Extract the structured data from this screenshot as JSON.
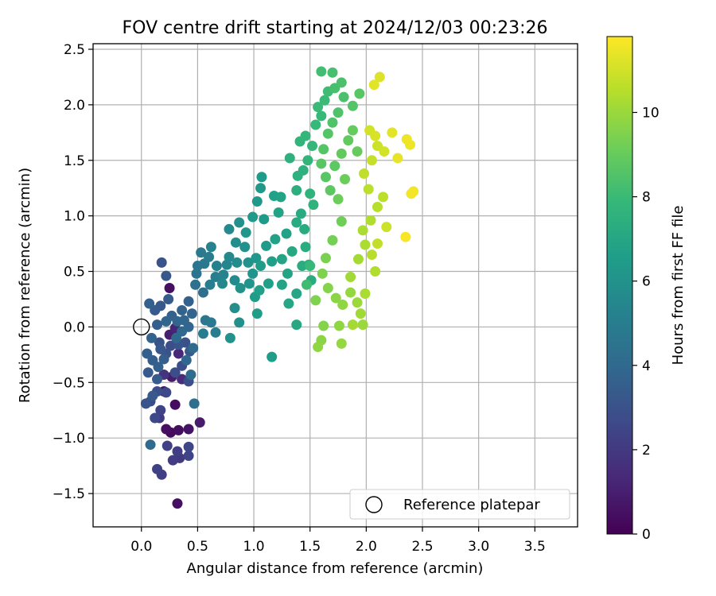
{
  "chart_data": {
    "type": "scatter",
    "title": "FOV centre drift starting at 2024/12/03 00:23:26",
    "xlabel": "Angular distance from reference (arcmin)",
    "ylabel": "Rotation from reference (arcmin)",
    "xlim": [
      -0.43,
      3.88
    ],
    "ylim": [
      -1.8,
      2.55
    ],
    "xticks": [
      0.0,
      0.5,
      1.0,
      1.5,
      2.0,
      2.5,
      3.0,
      3.5
    ],
    "xtick_labels": [
      "0.0",
      "0.5",
      "1.0",
      "1.5",
      "2.0",
      "2.5",
      "3.0",
      "3.5"
    ],
    "yticks": [
      -1.5,
      -1.0,
      -0.5,
      0.0,
      0.5,
      1.0,
      1.5,
      2.0,
      2.5
    ],
    "ytick_labels": [
      "−1.5",
      "−1.0",
      "−0.5",
      "0.0",
      "0.5",
      "1.0",
      "1.5",
      "2.0",
      "2.5"
    ],
    "grid": true,
    "colormap": "viridis",
    "colorbar": {
      "label": "Hours from first FF file",
      "range": [
        0,
        11.8
      ],
      "ticks": [
        0,
        2,
        4,
        6,
        8,
        10
      ],
      "tick_labels": [
        "0",
        "2",
        "4",
        "6",
        "8",
        "10"
      ]
    },
    "reference_point": {
      "label": "Reference platepar",
      "x": 0.0,
      "y": 0.0
    },
    "legend": {
      "position": "lower-right",
      "entries": [
        "Reference platepar"
      ]
    },
    "columns": [
      "x",
      "y",
      "hours"
    ],
    "points": [
      [
        0.32,
        -1.59,
        0.5
      ],
      [
        0.22,
        -0.92,
        0.5
      ],
      [
        0.26,
        -0.95,
        0.3
      ],
      [
        0.33,
        -0.93,
        0.4
      ],
      [
        0.42,
        -0.92,
        0.6
      ],
      [
        0.52,
        -0.86,
        0.9
      ],
      [
        0.3,
        -0.7,
        0.4
      ],
      [
        0.2,
        -0.58,
        0.7
      ],
      [
        0.25,
        0.35,
        0.5
      ],
      [
        0.25,
        -0.07,
        1.0
      ],
      [
        0.3,
        -0.01,
        1.2
      ],
      [
        0.27,
        -0.45,
        0.9
      ],
      [
        0.33,
        -0.24,
        1.3
      ],
      [
        0.36,
        -0.47,
        1.5
      ],
      [
        0.2,
        -0.43,
        1.8
      ],
      [
        0.16,
        -0.82,
        2.0
      ],
      [
        0.14,
        -1.28,
        2.3
      ],
      [
        0.18,
        -1.33,
        2.2
      ],
      [
        0.28,
        -1.2,
        2.1
      ],
      [
        0.23,
        -1.07,
        2.3
      ],
      [
        0.42,
        -1.16,
        2.4
      ],
      [
        0.42,
        -1.08,
        2.5
      ],
      [
        0.32,
        -1.12,
        2.2
      ],
      [
        0.34,
        -1.18,
        2.0
      ],
      [
        0.12,
        -0.82,
        2.6
      ],
      [
        0.08,
        -0.67,
        2.7
      ],
      [
        0.14,
        -0.58,
        2.9
      ],
      [
        0.22,
        -0.59,
        2.6
      ],
      [
        0.17,
        -0.75,
        2.4
      ],
      [
        0.42,
        -0.49,
        2.9
      ],
      [
        0.3,
        -0.41,
        2.8
      ],
      [
        0.36,
        -0.35,
        2.8
      ],
      [
        0.26,
        -0.17,
        2.8
      ],
      [
        0.16,
        -0.14,
        3.0
      ],
      [
        0.22,
        -0.24,
        3.0
      ],
      [
        0.17,
        -0.2,
        3.2
      ],
      [
        0.33,
        -0.16,
        3.1
      ],
      [
        0.39,
        -0.14,
        3.0
      ],
      [
        0.43,
        -0.22,
        3.2
      ],
      [
        0.04,
        -0.69,
        3.1
      ],
      [
        0.1,
        -0.62,
        3.3
      ],
      [
        0.14,
        -0.47,
        3.4
      ],
      [
        0.06,
        -0.41,
        3.4
      ],
      [
        0.1,
        -0.3,
        3.5
      ],
      [
        0.05,
        -0.24,
        3.6
      ],
      [
        0.15,
        -0.36,
        3.6
      ],
      [
        0.2,
        -0.29,
        3.5
      ],
      [
        0.09,
        -0.1,
        3.7
      ],
      [
        0.14,
        0.02,
        3.5
      ],
      [
        0.22,
        0.05,
        3.8
      ],
      [
        0.27,
        0.1,
        3.7
      ],
      [
        0.32,
        0.05,
        3.8
      ],
      [
        0.38,
        0.06,
        3.9
      ],
      [
        0.42,
        0.0,
        3.9
      ],
      [
        0.36,
        -0.04,
        4.0
      ],
      [
        0.31,
        -0.1,
        4.0
      ],
      [
        0.4,
        -0.3,
        3.9
      ],
      [
        0.46,
        -0.19,
        4.1
      ],
      [
        0.44,
        -0.43,
        4.2
      ],
      [
        0.47,
        -0.69,
        4.3
      ],
      [
        0.08,
        -1.06,
        4.1
      ],
      [
        0.18,
        0.58,
        3.1
      ],
      [
        0.22,
        0.46,
        3.2
      ],
      [
        0.17,
        0.19,
        3.3
      ],
      [
        0.24,
        0.25,
        3.4
      ],
      [
        0.07,
        0.21,
        3.6
      ],
      [
        0.12,
        0.15,
        3.4
      ],
      [
        0.42,
        0.23,
        3.6
      ],
      [
        0.36,
        0.15,
        3.7
      ],
      [
        0.45,
        0.12,
        3.8
      ],
      [
        0.55,
        0.31,
        4.3
      ],
      [
        0.48,
        0.38,
        4.4
      ],
      [
        0.49,
        0.48,
        4.5
      ],
      [
        0.5,
        0.55,
        4.6
      ],
      [
        0.56,
        0.57,
        4.7
      ],
      [
        0.53,
        0.67,
        4.8
      ],
      [
        0.6,
        0.63,
        4.9
      ],
      [
        0.57,
        0.06,
        4.7
      ],
      [
        0.62,
        0.04,
        4.8
      ],
      [
        0.55,
        -0.06,
        4.9
      ],
      [
        0.66,
        -0.05,
        5.0
      ],
      [
        0.61,
        0.38,
        5.0
      ],
      [
        0.66,
        0.45,
        5.1
      ],
      [
        0.67,
        0.55,
        5.2
      ],
      [
        0.62,
        0.72,
        5.3
      ],
      [
        0.73,
        0.47,
        5.3
      ],
      [
        0.76,
        0.56,
        5.4
      ],
      [
        0.78,
        0.63,
        5.5
      ],
      [
        0.72,
        0.39,
        5.5
      ],
      [
        0.78,
        0.88,
        5.6
      ],
      [
        0.83,
        0.42,
        5.6
      ],
      [
        0.85,
        0.58,
        5.7
      ],
      [
        0.84,
        0.76,
        5.8
      ],
      [
        0.87,
        0.94,
        5.9
      ],
      [
        0.92,
        0.72,
        5.9
      ],
      [
        0.95,
        0.58,
        6.0
      ],
      [
        0.88,
        0.35,
        6.0
      ],
      [
        0.83,
        0.17,
        5.8
      ],
      [
        0.87,
        0.04,
        5.9
      ],
      [
        0.79,
        -0.1,
        6.0
      ],
      [
        0.96,
        0.39,
        6.1
      ],
      [
        0.99,
        0.48,
        6.1
      ],
      [
        1.02,
        0.62,
        6.2
      ],
      [
        0.93,
        0.85,
        6.2
      ],
      [
        0.99,
        0.99,
        6.3
      ],
      [
        1.03,
        1.13,
        6.3
      ],
      [
        1.06,
        1.25,
        6.3
      ],
      [
        1.07,
        1.35,
        6.4
      ],
      [
        1.09,
        0.97,
        6.4
      ],
      [
        1.11,
        0.73,
        6.4
      ],
      [
        1.06,
        0.55,
        6.5
      ],
      [
        1.01,
        0.27,
        6.5
      ],
      [
        1.03,
        0.12,
        6.5
      ],
      [
        1.05,
        0.33,
        6.6
      ],
      [
        1.13,
        0.39,
        6.6
      ],
      [
        1.16,
        0.59,
        6.6
      ],
      [
        1.19,
        0.79,
        6.7
      ],
      [
        1.18,
        1.18,
        6.7
      ],
      [
        1.24,
        1.17,
        6.8
      ],
      [
        1.22,
        1.03,
        6.8
      ],
      [
        1.29,
        0.84,
        6.8
      ],
      [
        1.25,
        0.61,
        6.9
      ],
      [
        1.3,
        0.48,
        6.9
      ],
      [
        1.25,
        0.38,
        6.9
      ],
      [
        1.16,
        -0.27,
        6.5
      ],
      [
        1.31,
        0.21,
        7.0
      ],
      [
        1.38,
        0.3,
        7.0
      ],
      [
        1.38,
        0.02,
        7.1
      ],
      [
        1.34,
        0.68,
        7.1
      ],
      [
        1.38,
        0.94,
        7.2
      ],
      [
        1.42,
        1.02,
        7.2
      ],
      [
        1.45,
        0.88,
        7.2
      ],
      [
        1.46,
        0.72,
        7.3
      ],
      [
        1.43,
        0.55,
        7.3
      ],
      [
        1.51,
        0.42,
        7.3
      ],
      [
        1.49,
        0.56,
        7.4
      ],
      [
        1.38,
        1.23,
        7.4
      ],
      [
        1.32,
        1.52,
        7.5
      ],
      [
        1.39,
        1.36,
        7.5
      ],
      [
        1.44,
        1.41,
        7.5
      ],
      [
        1.5,
        1.2,
        7.6
      ],
      [
        1.53,
        1.1,
        7.6
      ],
      [
        1.48,
        1.5,
        7.7
      ],
      [
        1.41,
        1.67,
        7.7
      ],
      [
        1.46,
        1.72,
        7.8
      ],
      [
        1.52,
        1.63,
        7.8
      ],
      [
        1.55,
        1.82,
        7.9
      ],
      [
        1.6,
        1.9,
        7.9
      ],
      [
        1.57,
        1.98,
        8.0
      ],
      [
        1.63,
        2.04,
        8.0
      ],
      [
        1.66,
        2.12,
        8.1
      ],
      [
        1.6,
        2.3,
        8.2
      ],
      [
        1.7,
        2.29,
        8.3
      ],
      [
        1.72,
        2.15,
        8.3
      ],
      [
        1.78,
        2.2,
        8.4
      ],
      [
        1.8,
        2.07,
        8.4
      ],
      [
        1.75,
        1.93,
        8.5
      ],
      [
        1.7,
        1.84,
        8.5
      ],
      [
        1.66,
        1.74,
        8.6
      ],
      [
        1.62,
        1.6,
        8.6
      ],
      [
        1.6,
        1.47,
        8.7
      ],
      [
        1.64,
        1.35,
        8.7
      ],
      [
        1.68,
        1.23,
        8.8
      ],
      [
        1.72,
        1.45,
        8.8
      ],
      [
        1.78,
        1.56,
        8.9
      ],
      [
        1.84,
        1.68,
        8.9
      ],
      [
        1.88,
        1.77,
        9.0
      ],
      [
        1.92,
        1.58,
        9.0
      ],
      [
        1.94,
        2.1,
        8.7
      ],
      [
        1.88,
        1.99,
        8.6
      ],
      [
        1.81,
        1.33,
        9.1
      ],
      [
        1.75,
        1.15,
        9.1
      ],
      [
        1.78,
        0.95,
        9.2
      ],
      [
        1.7,
        0.78,
        9.3
      ],
      [
        1.64,
        0.62,
        9.4
      ],
      [
        1.61,
        0.48,
        9.5
      ],
      [
        1.66,
        0.35,
        9.6
      ],
      [
        1.73,
        0.26,
        9.7
      ],
      [
        1.79,
        0.2,
        9.8
      ],
      [
        1.86,
        0.31,
        9.9
      ],
      [
        1.92,
        0.22,
        10.0
      ],
      [
        1.95,
        0.12,
        10.1
      ],
      [
        1.88,
        0.02,
        10.2
      ],
      [
        1.97,
        0.02,
        10.0
      ],
      [
        1.76,
        0.01,
        9.8
      ],
      [
        1.62,
        0.01,
        9.6
      ],
      [
        1.6,
        -0.12,
        9.7
      ],
      [
        1.57,
        -0.18,
        9.8
      ],
      [
        1.78,
        -0.15,
        9.9
      ],
      [
        1.55,
        0.24,
        9.5
      ],
      [
        1.86,
        0.45,
        10.1
      ],
      [
        1.93,
        0.61,
        10.2
      ],
      [
        1.99,
        0.74,
        10.3
      ],
      [
        1.97,
        0.87,
        10.3
      ],
      [
        2.04,
        0.96,
        10.4
      ],
      [
        2.1,
        1.08,
        10.5
      ],
      [
        2.15,
        1.17,
        10.6
      ],
      [
        2.02,
        1.24,
        10.6
      ],
      [
        1.98,
        1.38,
        10.7
      ],
      [
        2.05,
        1.5,
        10.8
      ],
      [
        2.1,
        1.63,
        10.9
      ],
      [
        2.16,
        1.58,
        11.0
      ],
      [
        2.03,
        1.77,
        11.0
      ],
      [
        2.08,
        1.72,
        11.1
      ],
      [
        2.12,
        2.25,
        11.2
      ],
      [
        2.07,
        2.18,
        11.3
      ],
      [
        2.23,
        1.75,
        11.3
      ],
      [
        2.28,
        1.52,
        11.4
      ],
      [
        2.36,
        1.69,
        11.5
      ],
      [
        2.39,
        1.64,
        11.5
      ],
      [
        2.4,
        1.2,
        11.6
      ],
      [
        2.42,
        1.22,
        11.6
      ],
      [
        2.35,
        0.81,
        11.7
      ],
      [
        2.18,
        0.9,
        10.9
      ],
      [
        2.1,
        0.75,
        10.7
      ],
      [
        2.08,
        0.5,
        10.4
      ],
      [
        2.05,
        0.65,
        10.5
      ],
      [
        1.99,
        0.3,
        10.3
      ],
      [
        1.5,
        0.55,
        7.9
      ],
      [
        1.47,
        0.38,
        8.1
      ]
    ]
  }
}
